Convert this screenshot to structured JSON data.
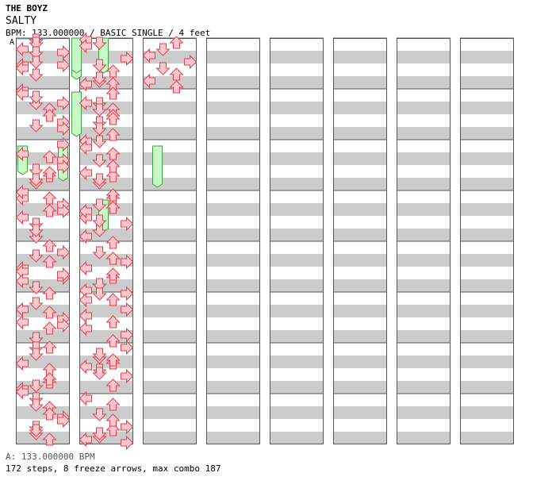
{
  "header": {
    "artist": "THE BOYZ",
    "title": "SALTY",
    "info": "BPM: 133.000000 / BASIC SINGLE / 4 feet",
    "bpm_marker": "A"
  },
  "footer": {
    "bpm_line": "A: 133.000000 BPM",
    "stats_line": "172 steps, 8 freeze arrows, max combo 187"
  },
  "colors": {
    "arrow_fill": "#ffc8cc",
    "arrow_stroke": "#e04050",
    "freeze_fill": "#c8f8c8",
    "freeze_stroke": "#40a040",
    "band_gray": "#cccccc",
    "column_border": "#555555"
  },
  "chart_data": {
    "type": "step-chart",
    "lanes": [
      "left",
      "down",
      "up",
      "right"
    ],
    "columns": 8,
    "measures_per_column": 8,
    "steps_per_measure": 16,
    "notes": [
      [
        1,
        0
      ],
      [
        1,
        1
      ],
      [
        0,
        3
      ],
      [
        1,
        4
      ],
      [
        3,
        4
      ],
      [
        1,
        7
      ],
      [
        0,
        8
      ],
      [
        3,
        8
      ],
      [
        0,
        9
      ],
      [
        1,
        11
      ],
      [
        0,
        0
      ],
      [
        1,
        4
      ],
      [
        3,
        4
      ],
      [
        2,
        6
      ],
      [
        2,
        8
      ],
      [
        3,
        10
      ],
      [
        1,
        11
      ],
      [
        3,
        12
      ],
      [
        0,
        1
      ],
      [
        1,
        2
      ],
      [
        3,
        6
      ],
      [
        1,
        9
      ],
      [
        2,
        11
      ],
      [
        1,
        13
      ],
      [
        3,
        1
      ],
      [
        0,
        4
      ],
      [
        2,
        5
      ],
      [
        3,
        8
      ],
      [
        2,
        10
      ],
      [
        1,
        12
      ],
      [
        1,
        14
      ],
      [
        0,
        2
      ],
      [
        3,
        4
      ],
      [
        2,
        6
      ],
      [
        0,
        8
      ],
      [
        1,
        10
      ],
      [
        1,
        12
      ],
      [
        0,
        0
      ],
      [
        2,
        2
      ],
      [
        3,
        6
      ],
      [
        0,
        8
      ],
      [
        3,
        11
      ],
      [
        1,
        14
      ],
      [
        2,
        1
      ],
      [
        1,
        4
      ],
      [
        2,
        6
      ],
      [
        0,
        9
      ],
      [
        3,
        10
      ],
      [
        0,
        12
      ],
      [
        3,
        3
      ],
      [
        0,
        5
      ],
      [
        3,
        8
      ],
      [
        2,
        11
      ],
      [
        1,
        14
      ],
      [
        2,
        0
      ],
      [
        1,
        3
      ],
      [
        0,
        5
      ],
      [
        2,
        6
      ],
      [
        0,
        9
      ],
      [
        3,
        10
      ],
      [
        2,
        12
      ],
      [
        0,
        14
      ],
      [
        1,
        1
      ],
      [
        1,
        3
      ],
      [
        0,
        6
      ],
      [
        2,
        8
      ],
      [
        2,
        11
      ],
      [
        1,
        13
      ],
      [
        0,
        15
      ],
      [
        2,
        1
      ],
      [
        2,
        4
      ],
      [
        3,
        7
      ],
      [
        1,
        10
      ],
      [
        1,
        12
      ],
      [
        2,
        14
      ],
      [
        1,
        1
      ],
      [
        1,
        3
      ],
      [
        2,
        6
      ],
      [
        3,
        8
      ],
      [
        1,
        11
      ],
      [
        1,
        13
      ],
      [
        2,
        14
      ],
      [
        0,
        0
      ],
      [
        0,
        2
      ],
      [
        3,
        6
      ],
      [
        1,
        8
      ],
      [
        2,
        10
      ],
      [
        1,
        12
      ],
      [
        0,
        14
      ],
      [
        1,
        1
      ],
      [
        1,
        4
      ],
      [
        2,
        6
      ],
      [
        2,
        8
      ],
      [
        1,
        10
      ],
      [
        1,
        12
      ],
      [
        2,
        14
      ],
      [
        2,
        1
      ],
      [
        0,
        4
      ],
      [
        1,
        6
      ],
      [
        2,
        9
      ],
      [
        2,
        11
      ],
      [
        1,
        13
      ],
      [
        0,
        0
      ],
      [
        0,
        2
      ],
      [
        2,
        4
      ],
      [
        1,
        6
      ],
      [
        2,
        8
      ],
      [
        0,
        10
      ],
      [
        1,
        12
      ],
      [
        1,
        0
      ],
      [
        2,
        2
      ],
      [
        2,
        5
      ],
      [
        0,
        8
      ],
      [
        3,
        10
      ],
      [
        1,
        12
      ],
      [
        0,
        14
      ],
      [
        2,
        1
      ],
      [
        1,
        4
      ],
      [
        0,
        6
      ],
      [
        1,
        9
      ],
      [
        2,
        11
      ],
      [
        1,
        13
      ],
      [
        0,
        15
      ],
      [
        2,
        0
      ],
      [
        1,
        3
      ],
      [
        2,
        5
      ],
      [
        3,
        6
      ],
      [
        0,
        8
      ],
      [
        2,
        10
      ],
      [
        1,
        13
      ],
      [
        1,
        0
      ],
      [
        2,
        2
      ],
      [
        3,
        5
      ],
      [
        0,
        7
      ],
      [
        2,
        9
      ],
      [
        0,
        11
      ],
      [
        3,
        13
      ],
      [
        2,
        15
      ],
      [
        3,
        0
      ],
      [
        0,
        2
      ],
      [
        1,
        4
      ],
      [
        2,
        6
      ],
      [
        1,
        8
      ],
      [
        3,
        10
      ],
      [
        2,
        13
      ],
      [
        3,
        1
      ],
      [
        1,
        3
      ],
      [
        2,
        5
      ],
      [
        0,
        7
      ],
      [
        1,
        9
      ],
      [
        2,
        11
      ],
      [
        1,
        13
      ],
      [
        3,
        15
      ],
      [
        0,
        1
      ],
      [
        2,
        3
      ],
      [
        1,
        6
      ],
      [
        2,
        8
      ],
      [
        3,
        10
      ],
      [
        1,
        12
      ],
      [
        0,
        14
      ],
      [
        2,
        1
      ],
      [
        1,
        3
      ],
      [
        0,
        5
      ],
      [
        3,
        7
      ],
      [
        1,
        9
      ],
      [
        2,
        11
      ],
      [
        0,
        13
      ],
      [
        2,
        15
      ]
    ],
    "freezes": [
      [
        0,
        4,
        0,
        12
      ],
      [
        0,
        6,
        0,
        10
      ],
      [
        1,
        4,
        1,
        14
      ],
      [
        3,
        6,
        3,
        12
      ],
      [
        2,
        0,
        2,
        10
      ],
      [
        2,
        3,
        2,
        12
      ],
      [
        2,
        10,
        2,
        14
      ],
      [
        0,
        4,
        0,
        10
      ]
    ]
  }
}
